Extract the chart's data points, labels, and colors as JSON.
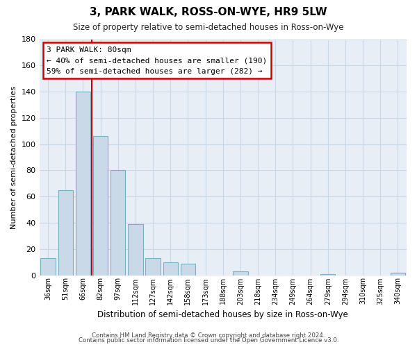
{
  "title": "3, PARK WALK, ROSS-ON-WYE, HR9 5LW",
  "subtitle": "Size of property relative to semi-detached houses in Ross-on-Wye",
  "xlabel": "Distribution of semi-detached houses by size in Ross-on-Wye",
  "ylabel": "Number of semi-detached properties",
  "bar_labels": [
    "36sqm",
    "51sqm",
    "66sqm",
    "82sqm",
    "97sqm",
    "112sqm",
    "127sqm",
    "142sqm",
    "158sqm",
    "173sqm",
    "188sqm",
    "203sqm",
    "218sqm",
    "234sqm",
    "249sqm",
    "264sqm",
    "279sqm",
    "294sqm",
    "310sqm",
    "325sqm",
    "340sqm"
  ],
  "bar_values": [
    13,
    65,
    140,
    106,
    80,
    39,
    13,
    10,
    9,
    0,
    0,
    3,
    0,
    0,
    0,
    0,
    1,
    0,
    0,
    0,
    2
  ],
  "bar_color": "#c9d9e8",
  "bar_edge_color": "#7aafc8",
  "ylim": [
    0,
    180
  ],
  "yticks": [
    0,
    20,
    40,
    60,
    80,
    100,
    120,
    140,
    160,
    180
  ],
  "property_line_index": 2.5,
  "annotation_title": "3 PARK WALK: 80sqm",
  "annotation_line1": "← 40% of semi-detached houses are smaller (190)",
  "annotation_line2": "59% of semi-detached houses are larger (282) →",
  "annotation_box_color": "#ffffff",
  "annotation_box_edge": "#cc0000",
  "property_line_color": "#cc0000",
  "footer1": "Contains HM Land Registry data © Crown copyright and database right 2024.",
  "footer2": "Contains public sector information licensed under the Open Government Licence v3.0.",
  "background_color": "#ffffff",
  "plot_bg_color": "#e8eef5",
  "grid_color": "#c8d8e8"
}
